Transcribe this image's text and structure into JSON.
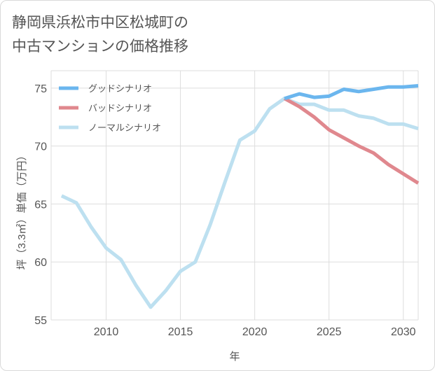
{
  "title": {
    "line1": "静岡県浜松市中区松城町の",
    "line2": "中古マンションの価格推移"
  },
  "chart_data": {
    "type": "line",
    "xlabel": "年",
    "ylabel": "坪（3.3㎡）単価（万円）",
    "xlim": [
      2006.3,
      2031
    ],
    "ylim": [
      55,
      76.5
    ],
    "x_ticks": [
      2010,
      2015,
      2020,
      2025,
      2030
    ],
    "y_ticks": [
      55,
      60,
      65,
      70,
      75
    ],
    "grid": true,
    "legend_position": "top-left",
    "series": [
      {
        "name": "グッドシナリオ",
        "color": "#6bb6ee",
        "x": [
          2022,
          2023,
          2024,
          2025,
          2026,
          2027,
          2028,
          2029,
          2030,
          2031
        ],
        "y": [
          74.1,
          74.5,
          74.2,
          74.3,
          74.9,
          74.7,
          74.9,
          75.1,
          75.1,
          75.2
        ]
      },
      {
        "name": "バッドシナリオ",
        "color": "#e0888e",
        "x": [
          2022,
          2023,
          2024,
          2025,
          2026,
          2027,
          2028,
          2029,
          2030,
          2031
        ],
        "y": [
          74.1,
          73.4,
          72.5,
          71.4,
          70.7,
          70.0,
          69.4,
          68.4,
          67.6,
          66.8
        ]
      },
      {
        "name": "ノーマルシナリオ",
        "color": "#bde0f0",
        "x": [
          2007,
          2008,
          2009,
          2010,
          2011,
          2012,
          2013,
          2014,
          2015,
          2016,
          2017,
          2018,
          2019,
          2020,
          2021,
          2022,
          2023,
          2024,
          2025,
          2026,
          2027,
          2028,
          2029,
          2030,
          2031
        ],
        "y": [
          65.7,
          65.1,
          63.0,
          61.2,
          60.2,
          58.0,
          56.1,
          57.5,
          59.2,
          60.0,
          63.2,
          66.9,
          70.5,
          71.3,
          73.2,
          74.1,
          73.6,
          73.6,
          73.1,
          73.1,
          72.6,
          72.4,
          71.9,
          71.9,
          71.5
        ]
      }
    ]
  }
}
